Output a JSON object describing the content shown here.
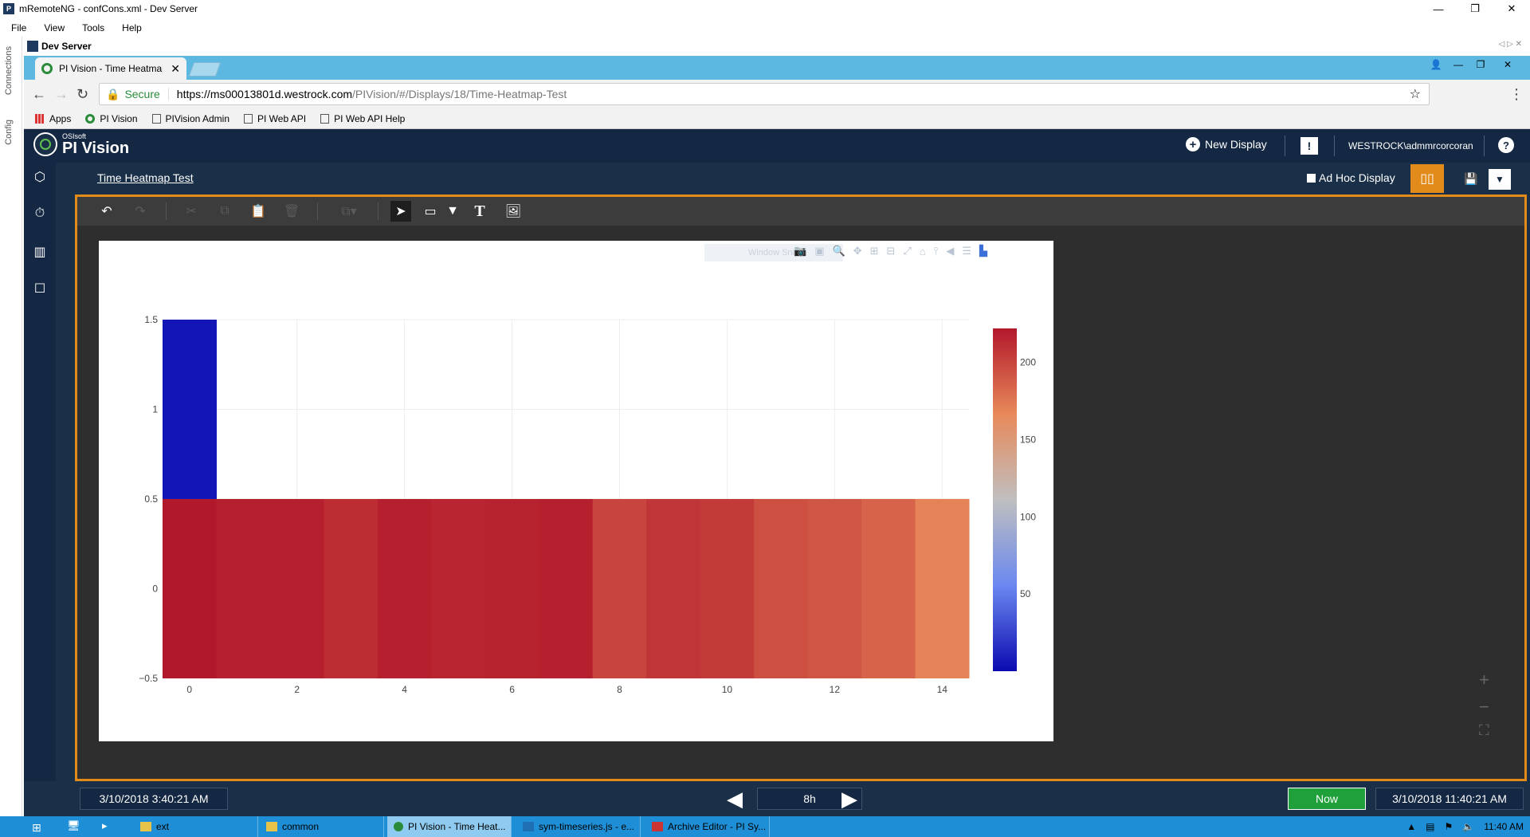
{
  "window": {
    "title": "mRemoteNG - confCons.xml - Dev Server",
    "minimize": "—",
    "restore": "❐",
    "close": "✕"
  },
  "menu": [
    "File",
    "View",
    "Tools",
    "Help"
  ],
  "left_panel": {
    "connections": "Connections",
    "config": "Config"
  },
  "dev_tab": {
    "label": "Dev Server",
    "controls": "◁ ▷ ✕"
  },
  "browser": {
    "tab_title": "PI Vision - Time Heatmap",
    "tab_close": "✕",
    "secure_label": "Secure",
    "url_host": "https://ms00013801d.westrock.com",
    "url_path": "/PIVision/#/Displays/18/Time-Heatmap-Test",
    "bookmarks": [
      "Apps",
      "PI Vision",
      "PIVision Admin",
      "PI Web API",
      "PI Web API Help"
    ]
  },
  "pivision": {
    "brand_small": "OSIsoft",
    "brand": "PI Vision",
    "new_display": "New Display",
    "alert": "!",
    "user": "WESTROCK\\admmrcorcoran",
    "help": "?",
    "display_title": "Time Heatmap Test",
    "ad_hoc": "Ad Hoc Display",
    "window_snip": "Window Snip"
  },
  "timebar": {
    "start": "3/10/2018 3:40:21 AM",
    "duration": "8h",
    "now": "Now",
    "end": "3/10/2018 11:40:21 AM"
  },
  "taskbar": {
    "items": [
      "ext",
      "common",
      "PI Vision - Time Heat...",
      "sym-timeseries.js - e...",
      "Archive Editor - PI Sy..."
    ],
    "clock": "11:40 AM"
  },
  "chart_data": {
    "type": "heatmap",
    "x_ticks": [
      0,
      2,
      4,
      6,
      8,
      10,
      12,
      14
    ],
    "y_ticks": [
      -0.5,
      0,
      0.5,
      1,
      1.5
    ],
    "y_tick_labels": [
      "−0.5",
      "0",
      "0.5",
      "1",
      "1.5"
    ],
    "xlim": [
      -0.5,
      14.5
    ],
    "ylim": [
      -0.5,
      1.5
    ],
    "rows": [
      {
        "y": 0,
        "x": [
          0,
          1,
          2,
          3,
          4,
          5,
          6,
          7,
          8,
          9,
          10,
          11,
          12,
          13,
          14
        ],
        "z": [
          222,
          218,
          218,
          212,
          218,
          215,
          217,
          218,
          200,
          208,
          205,
          195,
          192,
          185,
          170
        ]
      },
      {
        "y": 1,
        "x": [
          0
        ],
        "z": [
          5
        ]
      }
    ],
    "colorscale": {
      "min": 0,
      "max": 222,
      "stops": [
        "#0c0ab0",
        "#6a88f0",
        "#bfbfbf",
        "#e8895a",
        "#b2182b"
      ],
      "ticks": [
        50,
        100,
        150,
        200
      ]
    },
    "grid": true
  }
}
